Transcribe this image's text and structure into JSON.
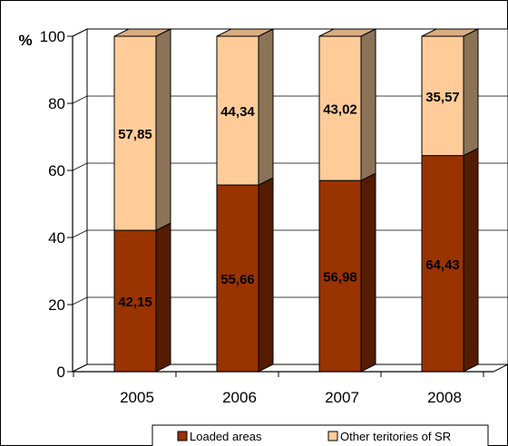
{
  "chart_data": {
    "type": "bar",
    "stacked": true,
    "three_d": true,
    "categories": [
      "2005",
      "2006",
      "2007",
      "2008"
    ],
    "series": [
      {
        "name": "Loaded areas",
        "values": [
          42.15,
          55.66,
          56.98,
          64.43
        ],
        "labels": [
          "42,15",
          "55,66",
          "56,98",
          "64,43"
        ],
        "color": "#993300"
      },
      {
        "name": "Other teritories of SR",
        "values": [
          57.85,
          44.34,
          43.02,
          35.57
        ],
        "labels": [
          "57,85",
          "44,34",
          "43,02",
          "35,57"
        ],
        "color": "#ffcc99"
      }
    ],
    "ylabel": "%",
    "ylim": [
      0,
      100
    ],
    "yticks": [
      0,
      20,
      40,
      60,
      80,
      100
    ],
    "grid": true,
    "legend": "bottom"
  }
}
